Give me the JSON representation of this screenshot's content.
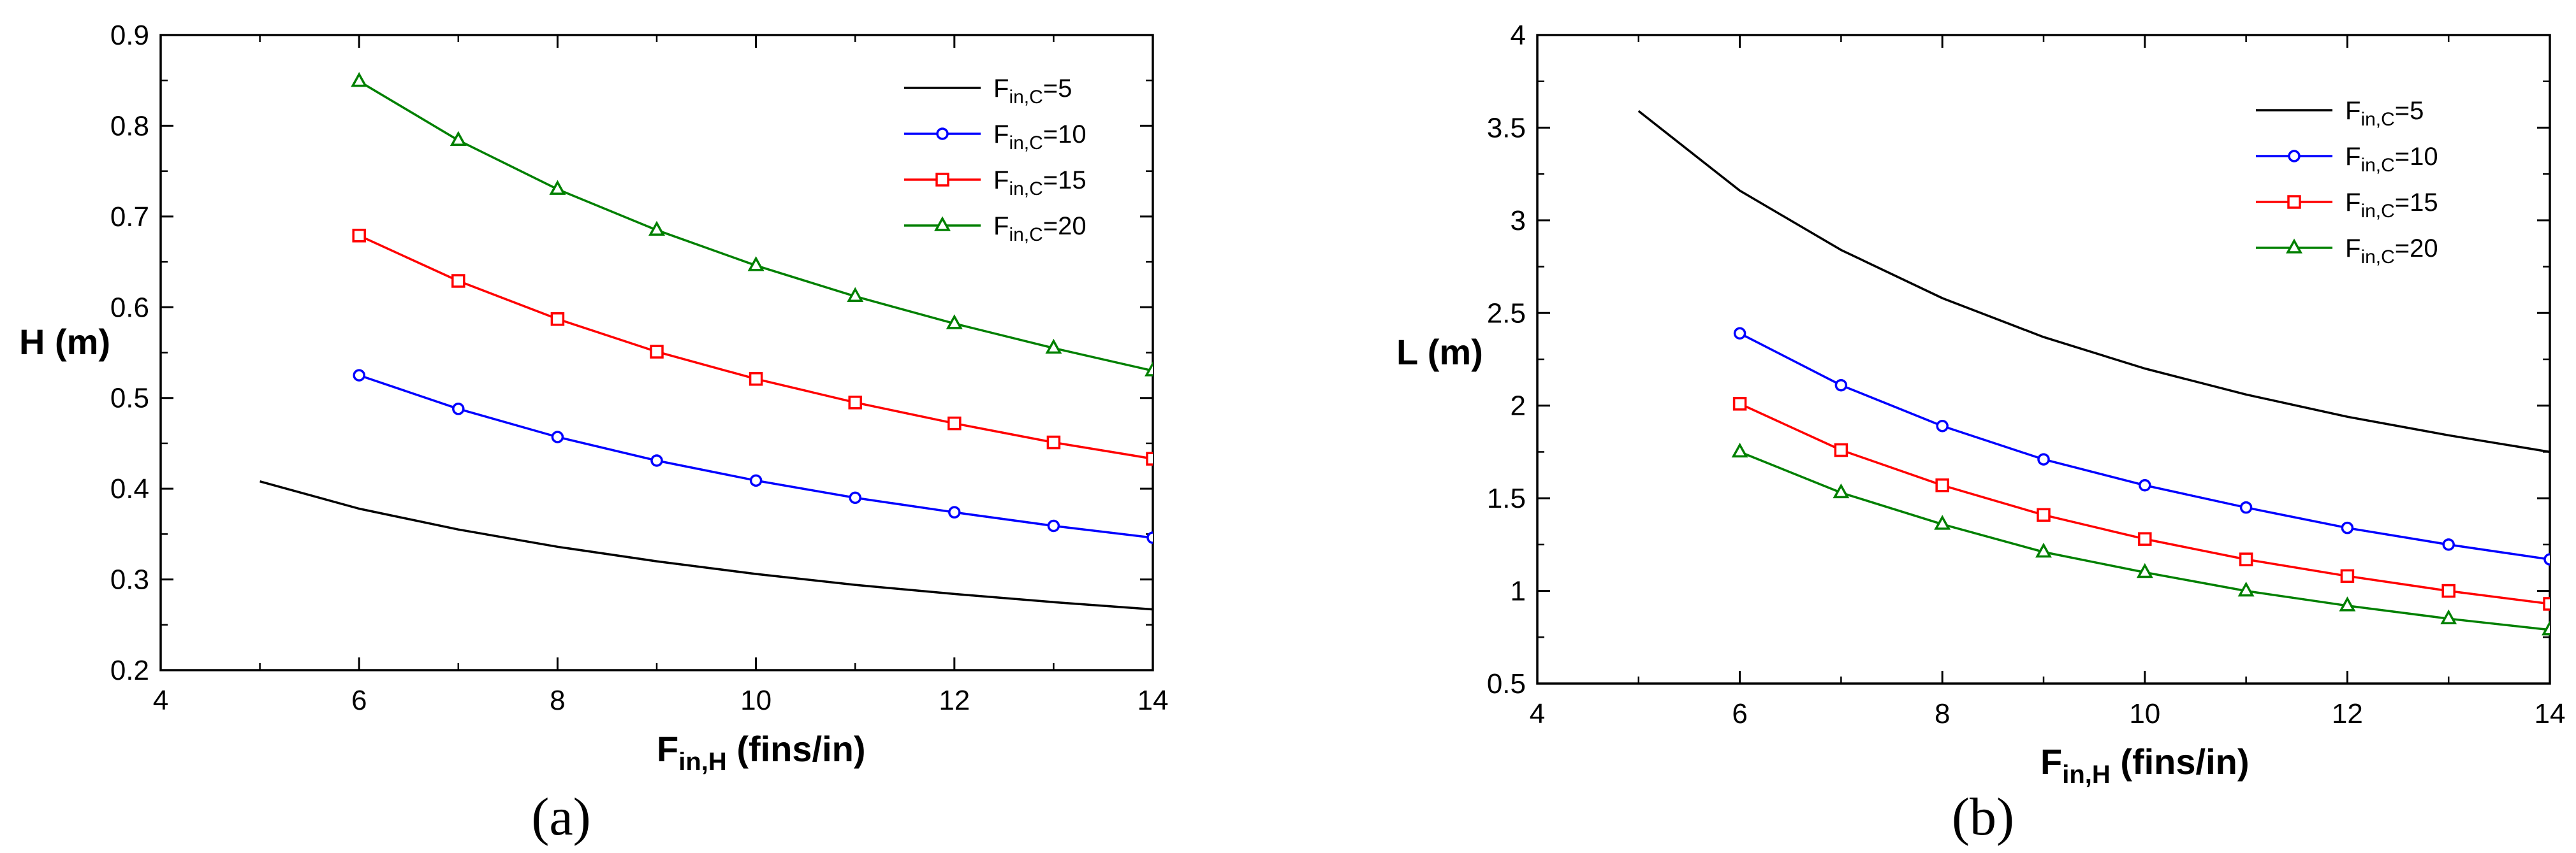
{
  "chart_data": [
    {
      "type": "line",
      "panel": "a",
      "caption": "(a)",
      "xlabel_main": "F",
      "xlabel_sub": "in,H",
      "xlabel_unit": " (fins/in)",
      "ylabel": "H (m)",
      "xlim": [
        4,
        14
      ],
      "ylim": [
        0.2,
        0.9
      ],
      "xticks": [
        4,
        6,
        8,
        10,
        12,
        14
      ],
      "yticks": [
        0.2,
        0.3,
        0.4,
        0.5,
        0.6,
        0.7,
        0.8,
        0.9
      ],
      "ytick_labels": [
        "0.2",
        "0.3",
        "0.4",
        "0.5",
        "0.6",
        "0.7",
        "0.8",
        "0.9"
      ],
      "legend_position": "top-right",
      "series": [
        {
          "name_main": "F",
          "name_sub": "in,C",
          "name_val": "=5",
          "color": "#000000",
          "marker": "none",
          "x": [
            5,
            6,
            7,
            8,
            9,
            10,
            11,
            12,
            13,
            14
          ],
          "y": [
            0.408,
            0.378,
            0.355,
            0.336,
            0.32,
            0.306,
            0.294,
            0.284,
            0.275,
            0.267
          ]
        },
        {
          "name_main": "F",
          "name_sub": "in,C",
          "name_val": "=10",
          "color": "#0000ff",
          "marker": "circle",
          "x": [
            6,
            7,
            8,
            9,
            10,
            11,
            12,
            13,
            14
          ],
          "y": [
            0.525,
            0.488,
            0.457,
            0.431,
            0.409,
            0.39,
            0.374,
            0.359,
            0.346
          ]
        },
        {
          "name_main": "F",
          "name_sub": "in,C",
          "name_val": "=15",
          "color": "#ff0000",
          "marker": "square",
          "x": [
            6,
            7,
            8,
            9,
            10,
            11,
            12,
            13,
            14
          ],
          "y": [
            0.679,
            0.629,
            0.587,
            0.551,
            0.521,
            0.495,
            0.472,
            0.451,
            0.433
          ]
        },
        {
          "name_main": "F",
          "name_sub": "in,C",
          "name_val": "=20",
          "color": "#008000",
          "marker": "triangle",
          "x": [
            6,
            7,
            8,
            9,
            10,
            11,
            12,
            13,
            14
          ],
          "y": [
            0.849,
            0.784,
            0.73,
            0.685,
            0.646,
            0.612,
            0.582,
            0.555,
            0.53
          ]
        }
      ]
    },
    {
      "type": "line",
      "panel": "b",
      "caption": "(b)",
      "xlabel_main": "F",
      "xlabel_sub": "in,H",
      "xlabel_unit": " (fins/in)",
      "ylabel": "L (m)",
      "xlim": [
        4,
        14
      ],
      "ylim": [
        0.5,
        4
      ],
      "xticks": [
        4,
        6,
        8,
        10,
        12,
        14
      ],
      "yticks": [
        0.5,
        1,
        1.5,
        2,
        2.5,
        3,
        3.5,
        4
      ],
      "ytick_labels": [
        "0.5",
        "1",
        "1.5",
        "2",
        "2.5",
        "3",
        "3.5",
        "4"
      ],
      "legend_position": "top-right",
      "series": [
        {
          "name_main": "F",
          "name_sub": "in,C",
          "name_val": "=5",
          "color": "#000000",
          "marker": "none",
          "x": [
            5,
            6,
            7,
            8,
            9,
            10,
            11,
            12,
            13,
            14
          ],
          "y": [
            3.59,
            3.16,
            2.84,
            2.58,
            2.37,
            2.2,
            2.06,
            1.94,
            1.84,
            1.75
          ]
        },
        {
          "name_main": "F",
          "name_sub": "in,C",
          "name_val": "=10",
          "color": "#0000ff",
          "marker": "circle",
          "x": [
            6,
            7,
            8,
            9,
            10,
            11,
            12,
            13,
            14
          ],
          "y": [
            2.39,
            2.11,
            1.89,
            1.71,
            1.57,
            1.45,
            1.34,
            1.25,
            1.17
          ]
        },
        {
          "name_main": "F",
          "name_sub": "in,C",
          "name_val": "=15",
          "color": "#ff0000",
          "marker": "square",
          "x": [
            6,
            7,
            8,
            9,
            10,
            11,
            12,
            13,
            14
          ],
          "y": [
            2.01,
            1.76,
            1.57,
            1.41,
            1.28,
            1.17,
            1.08,
            1.0,
            0.93
          ]
        },
        {
          "name_main": "F",
          "name_sub": "in,C",
          "name_val": "=20",
          "color": "#008000",
          "marker": "triangle",
          "x": [
            6,
            7,
            8,
            9,
            10,
            11,
            12,
            13,
            14
          ],
          "y": [
            1.75,
            1.53,
            1.36,
            1.21,
            1.1,
            1.0,
            0.92,
            0.85,
            0.79
          ]
        }
      ]
    }
  ]
}
